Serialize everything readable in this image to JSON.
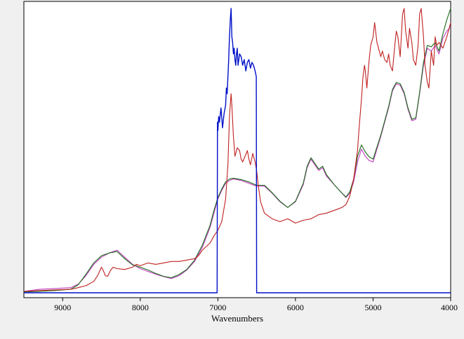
{
  "chart_data": {
    "type": "line",
    "title": "",
    "xlabel": "Wavenumbers",
    "ylabel": "",
    "xlim": [
      9500,
      4000
    ],
    "x_reversed": true,
    "ylim": [
      0,
      1
    ],
    "y_ticks_shown": false,
    "grid": false,
    "legend": "none",
    "x_ticks": [
      9000,
      8000,
      7000,
      6000,
      5000,
      4000
    ],
    "x_tick_labels": [
      "9000",
      "8000",
      "7000",
      "6000",
      "5000",
      "4000"
    ],
    "colors": {
      "green": "#1a6b1a",
      "magenta": "#c040c0",
      "red": "#c02020",
      "blue": "#0010c8",
      "axis": "#000000",
      "plot_bg": "#ffffff",
      "page_bg": "#f0f0f0"
    },
    "series": [
      {
        "color": "#c040c0",
        "x": [
          9500,
          9300,
          9100,
          8900,
          8800,
          8700,
          8600,
          8500,
          8400,
          8300,
          8200,
          8100,
          8000,
          7900,
          7800,
          7700,
          7600,
          7500,
          7400,
          7300,
          7200,
          7100,
          7050,
          7000,
          6950,
          6900,
          6850,
          6800,
          6700,
          6600,
          6500,
          6400,
          6300,
          6200,
          6100,
          6000,
          5900,
          5850,
          5800,
          5750,
          5700,
          5650,
          5600,
          5500,
          5400,
          5350,
          5300,
          5250,
          5200,
          5150,
          5100,
          5050,
          5000,
          4900,
          4800,
          4750,
          4700,
          4650,
          4600,
          4550,
          4500,
          4450,
          4400,
          4350,
          4300,
          4250,
          4200,
          4150,
          4100,
          4050,
          4000
        ],
        "y": [
          0.005,
          0.012,
          0.015,
          0.018,
          0.03,
          0.06,
          0.1,
          0.125,
          0.14,
          0.15,
          0.125,
          0.1,
          0.085,
          0.075,
          0.065,
          0.057,
          0.05,
          0.06,
          0.08,
          0.11,
          0.16,
          0.23,
          0.28,
          0.33,
          0.36,
          0.385,
          0.395,
          0.4,
          0.395,
          0.385,
          0.375,
          0.375,
          0.35,
          0.32,
          0.3,
          0.32,
          0.38,
          0.44,
          0.47,
          0.45,
          0.43,
          0.44,
          0.41,
          0.38,
          0.35,
          0.335,
          0.35,
          0.39,
          0.46,
          0.505,
          0.48,
          0.465,
          0.46,
          0.55,
          0.65,
          0.71,
          0.735,
          0.73,
          0.7,
          0.645,
          0.605,
          0.61,
          0.7,
          0.8,
          0.86,
          0.85,
          0.87,
          0.84,
          0.895,
          0.92,
          0.935
        ]
      },
      {
        "color": "#1a6b1a",
        "x": [
          9500,
          9300,
          9100,
          8900,
          8800,
          8700,
          8600,
          8500,
          8400,
          8300,
          8200,
          8100,
          8000,
          7900,
          7800,
          7700,
          7600,
          7500,
          7400,
          7300,
          7200,
          7100,
          7050,
          7000,
          6950,
          6900,
          6850,
          6800,
          6700,
          6600,
          6500,
          6400,
          6300,
          6200,
          6100,
          6000,
          5900,
          5850,
          5800,
          5750,
          5700,
          5650,
          5600,
          5500,
          5400,
          5350,
          5300,
          5250,
          5200,
          5150,
          5100,
          5050,
          5000,
          4900,
          4800,
          4750,
          4700,
          4650,
          4600,
          4550,
          4500,
          4450,
          4400,
          4350,
          4300,
          4250,
          4200,
          4150,
          4100,
          4050,
          4000
        ],
        "y": [
          0.003,
          0.005,
          0.008,
          0.012,
          0.028,
          0.065,
          0.105,
          0.13,
          0.14,
          0.145,
          0.12,
          0.098,
          0.09,
          0.08,
          0.068,
          0.058,
          0.053,
          0.064,
          0.082,
          0.115,
          0.168,
          0.238,
          0.29,
          0.335,
          0.365,
          0.39,
          0.4,
          0.403,
          0.398,
          0.39,
          0.378,
          0.378,
          0.352,
          0.322,
          0.3,
          0.322,
          0.385,
          0.445,
          0.475,
          0.455,
          0.435,
          0.445,
          0.415,
          0.38,
          0.35,
          0.337,
          0.355,
          0.4,
          0.48,
          0.52,
          0.495,
          0.478,
          0.47,
          0.555,
          0.655,
          0.715,
          0.74,
          0.735,
          0.705,
          0.65,
          0.61,
          0.615,
          0.705,
          0.81,
          0.87,
          0.865,
          0.88,
          0.85,
          0.91,
          0.96,
          1.0
        ]
      },
      {
        "color": "#c02020",
        "x": [
          9500,
          9300,
          9100,
          8900,
          8800,
          8700,
          8600,
          8550,
          8500,
          8480,
          8450,
          8420,
          8400,
          8380,
          8350,
          8300,
          8200,
          8100,
          8050,
          8000,
          7950,
          7900,
          7800,
          7700,
          7600,
          7500,
          7400,
          7300,
          7250,
          7200,
          7100,
          7050,
          7000,
          6950,
          6900,
          6870,
          6850,
          6830,
          6820,
          6800,
          6780,
          6750,
          6720,
          6700,
          6680,
          6650,
          6620,
          6600,
          6580,
          6550,
          6520,
          6500,
          6480,
          6450,
          6400,
          6300,
          6200,
          6100,
          6000,
          5900,
          5800,
          5700,
          5600,
          5500,
          5400,
          5350,
          5300,
          5250,
          5200,
          5180,
          5150,
          5130,
          5110,
          5100,
          5080,
          5050,
          5030,
          5000,
          4980,
          4950,
          4900,
          4880,
          4850,
          4820,
          4800,
          4780,
          4750,
          4720,
          4700,
          4680,
          4650,
          4620,
          4600,
          4580,
          4550,
          4530,
          4500,
          4480,
          4450,
          4420,
          4400,
          4380,
          4350,
          4330,
          4300,
          4280,
          4250,
          4220,
          4200,
          4180,
          4150,
          4100,
          4050,
          4000
        ],
        "y": [
          0.005,
          0.008,
          0.01,
          0.012,
          0.018,
          0.025,
          0.04,
          0.06,
          0.09,
          0.08,
          0.06,
          0.058,
          0.07,
          0.08,
          0.09,
          0.085,
          0.082,
          0.09,
          0.1,
          0.095,
          0.1,
          0.105,
          0.1,
          0.105,
          0.11,
          0.11,
          0.115,
          0.12,
          0.13,
          0.15,
          0.175,
          0.2,
          0.22,
          0.25,
          0.33,
          0.45,
          0.62,
          0.7,
          0.66,
          0.55,
          0.48,
          0.51,
          0.5,
          0.47,
          0.46,
          0.48,
          0.5,
          0.47,
          0.45,
          0.49,
          0.46,
          0.43,
          0.38,
          0.32,
          0.28,
          0.26,
          0.25,
          0.26,
          0.245,
          0.255,
          0.26,
          0.275,
          0.28,
          0.29,
          0.3,
          0.31,
          0.34,
          0.4,
          0.5,
          0.58,
          0.68,
          0.76,
          0.8,
          0.78,
          0.72,
          0.82,
          0.87,
          0.9,
          0.95,
          0.88,
          0.83,
          0.85,
          0.82,
          0.81,
          0.84,
          0.8,
          0.78,
          0.87,
          0.92,
          0.9,
          0.83,
          0.98,
          1.0,
          0.92,
          0.86,
          0.93,
          0.88,
          0.82,
          0.8,
          0.87,
          0.98,
          1.0,
          0.9,
          0.8,
          0.74,
          0.72,
          0.85,
          0.8,
          0.9,
          0.87,
          0.88,
          0.86,
          0.9,
          0.95
        ]
      },
      {
        "color": "#0010c8",
        "x": [
          9500,
          9200,
          8800,
          8400,
          8000,
          7600,
          7200,
          7010,
          7005,
          7000,
          6990,
          6980,
          6960,
          6940,
          6920,
          6900,
          6890,
          6880,
          6870,
          6860,
          6850,
          6840,
          6830,
          6820,
          6810,
          6800,
          6790,
          6780,
          6770,
          6760,
          6750,
          6740,
          6720,
          6700,
          6680,
          6660,
          6640,
          6620,
          6600,
          6580,
          6560,
          6540,
          6520,
          6505,
          6500,
          6495,
          6200,
          5800,
          5400,
          5000,
          4600,
          4200,
          4000
        ],
        "y": [
          0.0,
          0.0,
          0.0,
          0.0,
          0.0,
          0.0,
          0.0,
          0.0,
          0.6,
          0.57,
          0.62,
          0.6,
          0.65,
          0.58,
          0.63,
          0.66,
          0.72,
          0.7,
          0.76,
          0.82,
          0.9,
          0.96,
          1.0,
          0.9,
          0.88,
          0.84,
          0.86,
          0.82,
          0.8,
          0.84,
          0.86,
          0.8,
          0.84,
          0.83,
          0.8,
          0.82,
          0.78,
          0.81,
          0.82,
          0.79,
          0.81,
          0.8,
          0.78,
          0.76,
          0.0,
          0.0,
          0.0,
          0.0,
          0.0,
          0.0,
          0.0,
          0.0,
          0.0
        ]
      }
    ]
  }
}
